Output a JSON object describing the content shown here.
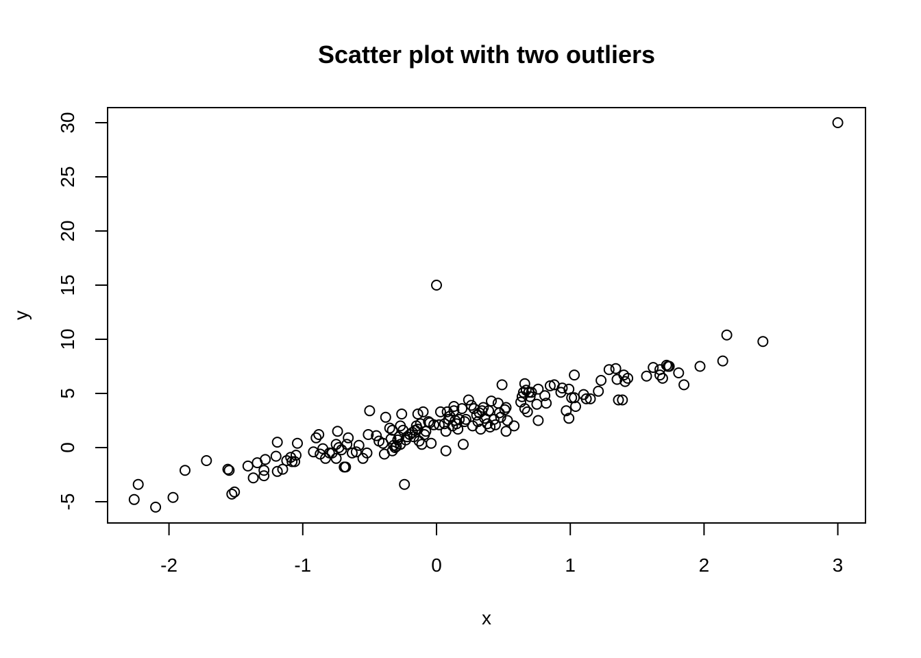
{
  "chart_data": {
    "type": "scatter",
    "title": "Scatter plot with two outliers",
    "xlabel": "x",
    "ylabel": "y",
    "xlim": [
      -2.5,
      3.2
    ],
    "ylim": [
      -7,
      31.5
    ],
    "xticks": [
      -2,
      -1,
      0,
      1,
      2,
      3
    ],
    "yticks": [
      -5,
      0,
      5,
      10,
      15,
      20,
      25,
      30
    ],
    "xtick_labels": [
      "-2",
      "-1",
      "0",
      "1",
      "2",
      "3"
    ],
    "ytick_labels": [
      "-5",
      "0",
      "5",
      "10",
      "15",
      "20",
      "25",
      "30"
    ],
    "grid": false,
    "marker": "open-circle",
    "points": [
      [
        3.0,
        30.0
      ],
      [
        0.0,
        15.0
      ],
      [
        -2.26,
        -4.8
      ],
      [
        -2.23,
        -3.4
      ],
      [
        -2.1,
        -5.5
      ],
      [
        -1.97,
        -4.6
      ],
      [
        -1.88,
        -2.1
      ],
      [
        -1.72,
        -1.2
      ],
      [
        -1.56,
        -2.0
      ],
      [
        -1.55,
        -2.1
      ],
      [
        -1.53,
        -4.3
      ],
      [
        -1.51,
        -4.1
      ],
      [
        -1.41,
        -1.7
      ],
      [
        -1.37,
        -2.8
      ],
      [
        -1.34,
        -1.4
      ],
      [
        -1.29,
        -2.1
      ],
      [
        -1.29,
        -2.6
      ],
      [
        -1.28,
        -1.1
      ],
      [
        -1.2,
        -0.8
      ],
      [
        -1.19,
        0.5
      ],
      [
        -1.19,
        -2.2
      ],
      [
        -1.15,
        -2.0
      ],
      [
        -1.12,
        -1.2
      ],
      [
        -1.09,
        -0.9
      ],
      [
        -1.08,
        -1.3
      ],
      [
        -1.06,
        -1.3
      ],
      [
        -1.05,
        -0.7
      ],
      [
        -1.04,
        0.4
      ],
      [
        -0.92,
        -0.4
      ],
      [
        -0.9,
        0.9
      ],
      [
        -0.88,
        1.2
      ],
      [
        -0.87,
        -0.6
      ],
      [
        -0.85,
        -0.1
      ],
      [
        -0.83,
        -1.0
      ],
      [
        -0.8,
        -0.5
      ],
      [
        -0.78,
        -0.5
      ],
      [
        -0.75,
        -1.0
      ],
      [
        -0.75,
        0.3
      ],
      [
        -0.74,
        1.5
      ],
      [
        -0.73,
        0.0
      ],
      [
        -0.71,
        -0.2
      ],
      [
        -0.69,
        -1.8
      ],
      [
        -0.68,
        -1.8
      ],
      [
        -0.67,
        0.3
      ],
      [
        -0.66,
        0.9
      ],
      [
        -0.63,
        -0.5
      ],
      [
        -0.6,
        -0.4
      ],
      [
        -0.58,
        0.2
      ],
      [
        -0.55,
        -1.0
      ],
      [
        -0.52,
        -0.5
      ],
      [
        -0.51,
        1.2
      ],
      [
        -0.5,
        3.4
      ],
      [
        -0.45,
        1.1
      ],
      [
        -0.43,
        0.6
      ],
      [
        -0.4,
        0.4
      ],
      [
        -0.39,
        -0.6
      ],
      [
        -0.38,
        2.8
      ],
      [
        -0.35,
        1.8
      ],
      [
        -0.34,
        0.8
      ],
      [
        -0.33,
        1.6
      ],
      [
        -0.33,
        -0.3
      ],
      [
        -0.32,
        0.2
      ],
      [
        -0.31,
        0.0
      ],
      [
        -0.3,
        0.1
      ],
      [
        -0.29,
        0.7
      ],
      [
        -0.28,
        1.0
      ],
      [
        -0.27,
        0.3
      ],
      [
        -0.27,
        2.0
      ],
      [
        -0.26,
        3.1
      ],
      [
        -0.25,
        1.6
      ],
      [
        -0.24,
        -3.4
      ],
      [
        -0.23,
        0.7
      ],
      [
        -0.22,
        1.0
      ],
      [
        -0.2,
        1.2
      ],
      [
        -0.18,
        1.4
      ],
      [
        -0.17,
        1.0
      ],
      [
        -0.16,
        1.6
      ],
      [
        -0.15,
        2.0
      ],
      [
        -0.14,
        3.1
      ],
      [
        -0.14,
        1.7
      ],
      [
        -0.13,
        0.6
      ],
      [
        -0.12,
        2.2
      ],
      [
        -0.11,
        0.3
      ],
      [
        -0.1,
        3.3
      ],
      [
        -0.09,
        1.2
      ],
      [
        -0.08,
        1.5
      ],
      [
        -0.06,
        2.4
      ],
      [
        -0.05,
        2.3
      ],
      [
        -0.04,
        0.4
      ],
      [
        -0.02,
        2.1
      ],
      [
        0.02,
        2.1
      ],
      [
        0.03,
        3.3
      ],
      [
        0.06,
        2.2
      ],
      [
        0.07,
        1.5
      ],
      [
        0.07,
        -0.3
      ],
      [
        0.08,
        3.3
      ],
      [
        0.09,
        2.6
      ],
      [
        0.1,
        2.9
      ],
      [
        0.12,
        2.0
      ],
      [
        0.13,
        3.4
      ],
      [
        0.13,
        3.8
      ],
      [
        0.14,
        2.5
      ],
      [
        0.15,
        2.2
      ],
      [
        0.16,
        1.7
      ],
      [
        0.17,
        2.6
      ],
      [
        0.19,
        3.6
      ],
      [
        0.2,
        0.3
      ],
      [
        0.21,
        2.4
      ],
      [
        0.22,
        2.6
      ],
      [
        0.24,
        4.4
      ],
      [
        0.26,
        3.9
      ],
      [
        0.27,
        2.0
      ],
      [
        0.28,
        3.6
      ],
      [
        0.3,
        3.0
      ],
      [
        0.31,
        2.4
      ],
      [
        0.32,
        3.2
      ],
      [
        0.33,
        1.7
      ],
      [
        0.34,
        3.4
      ],
      [
        0.35,
        3.7
      ],
      [
        0.36,
        2.7
      ],
      [
        0.38,
        2.2
      ],
      [
        0.39,
        3.4
      ],
      [
        0.4,
        1.9
      ],
      [
        0.41,
        4.3
      ],
      [
        0.43,
        2.6
      ],
      [
        0.44,
        2.1
      ],
      [
        0.46,
        4.1
      ],
      [
        0.47,
        3.2
      ],
      [
        0.48,
        2.8
      ],
      [
        0.49,
        5.8
      ],
      [
        0.51,
        3.5
      ],
      [
        0.52,
        3.7
      ],
      [
        0.52,
        1.5
      ],
      [
        0.53,
        2.5
      ],
      [
        0.58,
        2.0
      ],
      [
        0.63,
        4.2
      ],
      [
        0.64,
        4.7
      ],
      [
        0.65,
        5.1
      ],
      [
        0.66,
        3.6
      ],
      [
        0.66,
        5.9
      ],
      [
        0.67,
        5.3
      ],
      [
        0.68,
        3.3
      ],
      [
        0.69,
        5.1
      ],
      [
        0.7,
        4.7
      ],
      [
        0.71,
        5.1
      ],
      [
        0.75,
        4.0
      ],
      [
        0.76,
        2.5
      ],
      [
        0.76,
        5.4
      ],
      [
        0.81,
        4.8
      ],
      [
        0.82,
        4.1
      ],
      [
        0.85,
        5.7
      ],
      [
        0.88,
        5.8
      ],
      [
        0.93,
        5.1
      ],
      [
        0.94,
        5.5
      ],
      [
        0.97,
        3.4
      ],
      [
        0.99,
        2.7
      ],
      [
        0.99,
        5.4
      ],
      [
        1.01,
        4.6
      ],
      [
        1.03,
        6.7
      ],
      [
        1.03,
        4.6
      ],
      [
        1.04,
        3.8
      ],
      [
        1.1,
        4.9
      ],
      [
        1.12,
        4.5
      ],
      [
        1.15,
        4.5
      ],
      [
        1.21,
        5.2
      ],
      [
        1.23,
        6.2
      ],
      [
        1.29,
        7.2
      ],
      [
        1.34,
        7.3
      ],
      [
        1.35,
        6.3
      ],
      [
        1.36,
        4.4
      ],
      [
        1.39,
        4.4
      ],
      [
        1.4,
        6.7
      ],
      [
        1.41,
        6.1
      ],
      [
        1.43,
        6.4
      ],
      [
        1.57,
        6.6
      ],
      [
        1.62,
        7.4
      ],
      [
        1.67,
        6.7
      ],
      [
        1.67,
        7.2
      ],
      [
        1.69,
        6.4
      ],
      [
        1.72,
        7.6
      ],
      [
        1.73,
        7.5
      ],
      [
        1.74,
        7.5
      ],
      [
        1.81,
        6.9
      ],
      [
        1.85,
        5.8
      ],
      [
        1.97,
        7.5
      ],
      [
        2.14,
        8.0
      ],
      [
        2.17,
        10.4
      ],
      [
        2.44,
        9.8
      ]
    ]
  }
}
